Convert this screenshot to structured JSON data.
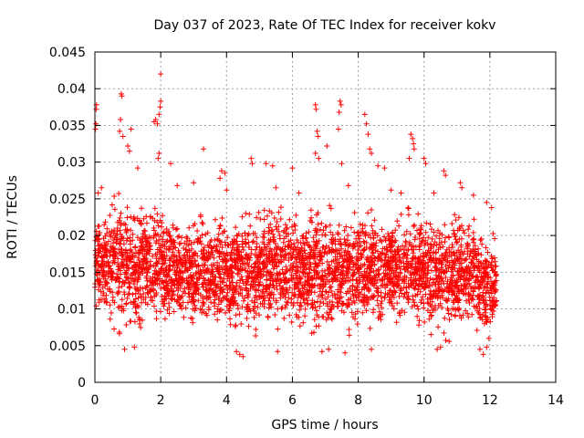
{
  "chart_data": {
    "type": "scatter",
    "title": "Day 037 of 2023, Rate Of TEC Index for receiver kokv",
    "xlabel": "GPS time / hours",
    "ylabel": "ROTI / TECUs",
    "xlim": [
      0,
      14
    ],
    "ylim": [
      0,
      0.045
    ],
    "x_ticks": [
      "0",
      "2",
      "4",
      "6",
      "8",
      "10",
      "12",
      "14"
    ],
    "y_ticks": [
      "0",
      "0.005",
      "0.01",
      "0.015",
      "0.02",
      "0.025",
      "0.03",
      "0.035",
      "0.04",
      "0.045"
    ],
    "grid": true,
    "marker": "plus",
    "color": "#ff0000",
    "x_range": [
      0,
      12.2
    ],
    "bands": [
      {
        "x": [
          0.0,
          0.45
        ],
        "y": [
          0.0085,
          0.0238
        ]
      },
      {
        "x": [
          0.45,
          1.0
        ],
        "y": [
          0.005,
          0.028
        ]
      },
      {
        "x": [
          1.0,
          1.5
        ],
        "y": [
          0.0055,
          0.026
        ]
      },
      {
        "x": [
          1.5,
          2.2
        ],
        "y": [
          0.006,
          0.025
        ]
      },
      {
        "x": [
          2.2,
          2.9
        ],
        "y": [
          0.006,
          0.024
        ]
      },
      {
        "x": [
          2.9,
          3.5
        ],
        "y": [
          0.0055,
          0.024
        ]
      },
      {
        "x": [
          3.5,
          4.2
        ],
        "y": [
          0.005,
          0.025
        ]
      },
      {
        "x": [
          4.2,
          5.0
        ],
        "y": [
          0.005,
          0.025
        ]
      },
      {
        "x": [
          5.0,
          5.9
        ],
        "y": [
          0.006,
          0.026
        ]
      },
      {
        "x": [
          5.9,
          6.5
        ],
        "y": [
          0.0055,
          0.024
        ]
      },
      {
        "x": [
          6.5,
          7.2
        ],
        "y": [
          0.0045,
          0.026
        ]
      },
      {
        "x": [
          7.2,
          8.0
        ],
        "y": [
          0.005,
          0.025
        ]
      },
      {
        "x": [
          8.0,
          8.8
        ],
        "y": [
          0.0055,
          0.025
        ]
      },
      {
        "x": [
          8.8,
          9.5
        ],
        "y": [
          0.007,
          0.024
        ]
      },
      {
        "x": [
          9.5,
          10.2
        ],
        "y": [
          0.006,
          0.025
        ]
      },
      {
        "x": [
          10.2,
          11.0
        ],
        "y": [
          0.005,
          0.024
        ]
      },
      {
        "x": [
          11.0,
          11.6
        ],
        "y": [
          0.006,
          0.024
        ]
      },
      {
        "x": [
          11.6,
          12.2
        ],
        "y": [
          0.0045,
          0.022
        ]
      }
    ],
    "outliers": [
      {
        "x": 0.02,
        "y": 0.0345
      },
      {
        "x": 0.03,
        "y": 0.0352
      },
      {
        "x": 0.04,
        "y": 0.0372
      },
      {
        "x": 0.05,
        "y": 0.0378
      },
      {
        "x": 0.8,
        "y": 0.0393
      },
      {
        "x": 0.82,
        "y": 0.039
      },
      {
        "x": 0.78,
        "y": 0.0358
      },
      {
        "x": 0.75,
        "y": 0.0342
      },
      {
        "x": 0.85,
        "y": 0.0335
      },
      {
        "x": 1.0,
        "y": 0.0322
      },
      {
        "x": 1.05,
        "y": 0.0315
      },
      {
        "x": 1.1,
        "y": 0.0345
      },
      {
        "x": 1.3,
        "y": 0.0292
      },
      {
        "x": 1.8,
        "y": 0.0355
      },
      {
        "x": 1.85,
        "y": 0.0358
      },
      {
        "x": 1.9,
        "y": 0.0352
      },
      {
        "x": 1.95,
        "y": 0.0365
      },
      {
        "x": 1.98,
        "y": 0.0375
      },
      {
        "x": 2.0,
        "y": 0.0383
      },
      {
        "x": 2.0,
        "y": 0.042
      },
      {
        "x": 1.92,
        "y": 0.0305
      },
      {
        "x": 1.95,
        "y": 0.0312
      },
      {
        "x": 2.3,
        "y": 0.0298
      },
      {
        "x": 3.3,
        "y": 0.0318
      },
      {
        "x": 3.85,
        "y": 0.0288
      },
      {
        "x": 3.95,
        "y": 0.0285
      },
      {
        "x": 3.8,
        "y": 0.0278
      },
      {
        "x": 4.75,
        "y": 0.0305
      },
      {
        "x": 4.78,
        "y": 0.0298
      },
      {
        "x": 5.2,
        "y": 0.0298
      },
      {
        "x": 5.4,
        "y": 0.0295
      },
      {
        "x": 6.0,
        "y": 0.0292
      },
      {
        "x": 6.7,
        "y": 0.0378
      },
      {
        "x": 6.72,
        "y": 0.0372
      },
      {
        "x": 6.75,
        "y": 0.0342
      },
      {
        "x": 6.78,
        "y": 0.0335
      },
      {
        "x": 6.7,
        "y": 0.0312
      },
      {
        "x": 6.8,
        "y": 0.0305
      },
      {
        "x": 7.05,
        "y": 0.0322
      },
      {
        "x": 7.45,
        "y": 0.0383
      },
      {
        "x": 7.48,
        "y": 0.0378
      },
      {
        "x": 7.42,
        "y": 0.0368
      },
      {
        "x": 7.4,
        "y": 0.0345
      },
      {
        "x": 7.5,
        "y": 0.0298
      },
      {
        "x": 8.2,
        "y": 0.0365
      },
      {
        "x": 8.25,
        "y": 0.0352
      },
      {
        "x": 8.3,
        "y": 0.0338
      },
      {
        "x": 8.35,
        "y": 0.0318
      },
      {
        "x": 8.4,
        "y": 0.0312
      },
      {
        "x": 8.6,
        "y": 0.0295
      },
      {
        "x": 8.8,
        "y": 0.0292
      },
      {
        "x": 9.6,
        "y": 0.0338
      },
      {
        "x": 9.65,
        "y": 0.0332
      },
      {
        "x": 9.68,
        "y": 0.0325
      },
      {
        "x": 9.7,
        "y": 0.0318
      },
      {
        "x": 9.55,
        "y": 0.0305
      },
      {
        "x": 10.0,
        "y": 0.0305
      },
      {
        "x": 10.05,
        "y": 0.0298
      },
      {
        "x": 10.6,
        "y": 0.0288
      },
      {
        "x": 10.65,
        "y": 0.0282
      },
      {
        "x": 11.1,
        "y": 0.0272
      },
      {
        "x": 11.15,
        "y": 0.0265
      },
      {
        "x": 11.5,
        "y": 0.0255
      },
      {
        "x": 0.1,
        "y": 0.0258
      },
      {
        "x": 0.2,
        "y": 0.0265
      },
      {
        "x": 2.5,
        "y": 0.0268
      },
      {
        "x": 3.0,
        "y": 0.0272
      },
      {
        "x": 4.0,
        "y": 0.0262
      },
      {
        "x": 5.5,
        "y": 0.0265
      },
      {
        "x": 6.2,
        "y": 0.0258
      },
      {
        "x": 7.7,
        "y": 0.0268
      },
      {
        "x": 9.0,
        "y": 0.0262
      },
      {
        "x": 9.3,
        "y": 0.0258
      },
      {
        "x": 10.3,
        "y": 0.0258
      },
      {
        "x": 11.9,
        "y": 0.0245
      },
      {
        "x": 12.05,
        "y": 0.0238
      },
      {
        "x": 0.9,
        "y": 0.0045
      },
      {
        "x": 1.2,
        "y": 0.0048
      },
      {
        "x": 4.3,
        "y": 0.0042
      },
      {
        "x": 4.4,
        "y": 0.0038
      },
      {
        "x": 4.5,
        "y": 0.0035
      },
      {
        "x": 5.55,
        "y": 0.0042
      },
      {
        "x": 6.9,
        "y": 0.0042
      },
      {
        "x": 7.1,
        "y": 0.0045
      },
      {
        "x": 7.6,
        "y": 0.004
      },
      {
        "x": 8.4,
        "y": 0.0045
      },
      {
        "x": 10.4,
        "y": 0.0045
      },
      {
        "x": 10.5,
        "y": 0.0048
      },
      {
        "x": 11.7,
        "y": 0.0045
      },
      {
        "x": 11.8,
        "y": 0.0038
      },
      {
        "x": 11.9,
        "y": 0.0048
      }
    ]
  }
}
